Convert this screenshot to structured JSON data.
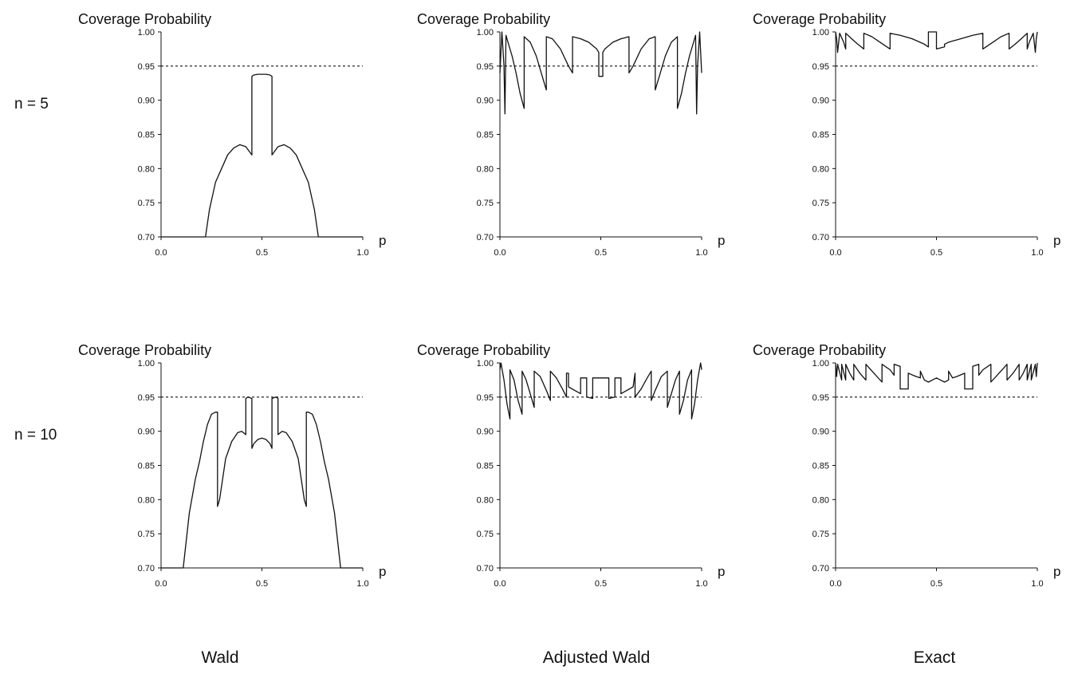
{
  "row_labels": [
    "n = 5",
    "n = 10"
  ],
  "column_labels": [
    "Wald",
    "Adjusted Wald",
    "Exact"
  ],
  "colors": {
    "line": "#111111",
    "reference": "#111111",
    "axis": "#111111"
  },
  "chart_data": [
    {
      "type": "line",
      "row": "n = 5",
      "column": "Wald",
      "ylabel": "Coverage Probability",
      "xlabel": "p",
      "xlim": [
        0.0,
        1.0
      ],
      "ylim": [
        0.7,
        1.0
      ],
      "xticks": [
        "0.0",
        "0.5",
        "1.0"
      ],
      "yticks": [
        "0.70",
        "0.75",
        "0.80",
        "0.85",
        "0.90",
        "0.95",
        "1.00"
      ],
      "reference_line": 0.95,
      "x": [
        0.0,
        0.22,
        0.24,
        0.27,
        0.3,
        0.33,
        0.36,
        0.39,
        0.42,
        0.45,
        0.45,
        0.46,
        0.48,
        0.5,
        0.52,
        0.54,
        0.55,
        0.55,
        0.58,
        0.61,
        0.64,
        0.67,
        0.7,
        0.73,
        0.76,
        0.78,
        1.0
      ],
      "y": [
        0.7,
        0.7,
        0.74,
        0.78,
        0.8,
        0.82,
        0.83,
        0.835,
        0.832,
        0.82,
        0.935,
        0.937,
        0.938,
        0.938,
        0.938,
        0.937,
        0.935,
        0.82,
        0.832,
        0.835,
        0.83,
        0.82,
        0.8,
        0.78,
        0.74,
        0.7,
        0.7
      ]
    },
    {
      "type": "line",
      "row": "n = 5",
      "column": "Adjusted Wald",
      "ylabel": "Coverage Probability",
      "xlabel": "p",
      "xlim": [
        0.0,
        1.0
      ],
      "ylim": [
        0.7,
        1.0
      ],
      "xticks": [
        "0.0",
        "0.5",
        "1.0"
      ],
      "yticks": [
        "0.70",
        "0.75",
        "0.80",
        "0.85",
        "0.90",
        "0.95",
        "1.00"
      ],
      "reference_line": 0.95,
      "x": [
        0.0,
        0.01,
        0.02,
        0.025,
        0.03,
        0.04,
        0.06,
        0.08,
        0.1,
        0.12,
        0.12,
        0.15,
        0.18,
        0.21,
        0.23,
        0.23,
        0.26,
        0.3,
        0.34,
        0.36,
        0.36,
        0.4,
        0.44,
        0.48,
        0.49,
        0.49,
        0.51,
        0.51,
        0.52,
        0.56,
        0.6,
        0.64,
        0.64,
        0.66,
        0.7,
        0.74,
        0.77,
        0.77,
        0.79,
        0.82,
        0.85,
        0.88,
        0.88,
        0.9,
        0.92,
        0.94,
        0.96,
        0.97,
        0.975,
        0.98,
        0.99,
        1.0
      ],
      "y": [
        0.94,
        1.0,
        0.95,
        0.88,
        0.995,
        0.985,
        0.965,
        0.94,
        0.91,
        0.888,
        0.993,
        0.985,
        0.965,
        0.935,
        0.915,
        0.993,
        0.99,
        0.975,
        0.95,
        0.94,
        0.993,
        0.99,
        0.985,
        0.975,
        0.97,
        0.935,
        0.935,
        0.97,
        0.975,
        0.985,
        0.99,
        0.993,
        0.94,
        0.95,
        0.975,
        0.99,
        0.993,
        0.915,
        0.935,
        0.965,
        0.985,
        0.993,
        0.888,
        0.91,
        0.94,
        0.965,
        0.985,
        0.995,
        0.88,
        0.95,
        1.0,
        0.94
      ]
    },
    {
      "type": "line",
      "row": "n = 5",
      "column": "Exact",
      "ylabel": "Coverage Probability",
      "xlabel": "p",
      "xlim": [
        0.0,
        1.0
      ],
      "ylim": [
        0.7,
        1.0
      ],
      "xticks": [
        "0.0",
        "0.5",
        "1.0"
      ],
      "yticks": [
        "0.70",
        "0.75",
        "0.80",
        "0.85",
        "0.90",
        "0.95",
        "1.00"
      ],
      "reference_line": 0.95,
      "x": [
        0.0,
        0.005,
        0.01,
        0.02,
        0.04,
        0.05,
        0.05,
        0.08,
        0.11,
        0.14,
        0.14,
        0.18,
        0.22,
        0.27,
        0.27,
        0.32,
        0.38,
        0.44,
        0.46,
        0.46,
        0.5,
        0.5,
        0.54,
        0.54,
        0.56,
        0.62,
        0.68,
        0.73,
        0.73,
        0.78,
        0.82,
        0.86,
        0.86,
        0.89,
        0.92,
        0.95,
        0.95,
        0.96,
        0.98,
        0.99,
        0.995,
        1.0
      ],
      "y": [
        1.0,
        0.99,
        0.97,
        0.998,
        0.985,
        0.975,
        0.998,
        0.99,
        0.982,
        0.975,
        0.998,
        0.993,
        0.985,
        0.975,
        0.998,
        0.995,
        0.99,
        0.982,
        0.978,
        1.0,
        1.0,
        0.975,
        0.978,
        0.982,
        0.985,
        0.99,
        0.995,
        0.998,
        0.975,
        0.985,
        0.993,
        0.998,
        0.975,
        0.982,
        0.99,
        0.998,
        0.975,
        0.985,
        0.998,
        0.97,
        0.99,
        1.0
      ]
    },
    {
      "type": "line",
      "row": "n = 10",
      "column": "Wald",
      "ylabel": "Coverage Probability",
      "xlabel": "p",
      "xlim": [
        0.0,
        1.0
      ],
      "ylim": [
        0.7,
        1.0
      ],
      "xticks": [
        "0.0",
        "0.5",
        "1.0"
      ],
      "yticks": [
        "0.70",
        "0.75",
        "0.80",
        "0.85",
        "0.90",
        "0.95",
        "1.00"
      ],
      "reference_line": 0.95,
      "x": [
        0.0,
        0.11,
        0.14,
        0.17,
        0.19,
        0.21,
        0.23,
        0.25,
        0.27,
        0.28,
        0.28,
        0.29,
        0.32,
        0.35,
        0.38,
        0.4,
        0.42,
        0.42,
        0.43,
        0.45,
        0.45,
        0.46,
        0.48,
        0.5,
        0.52,
        0.54,
        0.55,
        0.55,
        0.57,
        0.58,
        0.58,
        0.6,
        0.62,
        0.65,
        0.68,
        0.71,
        0.72,
        0.72,
        0.73,
        0.75,
        0.77,
        0.79,
        0.81,
        0.83,
        0.86,
        0.89,
        1.0
      ],
      "y": [
        0.7,
        0.7,
        0.78,
        0.83,
        0.855,
        0.885,
        0.91,
        0.925,
        0.928,
        0.928,
        0.79,
        0.8,
        0.86,
        0.885,
        0.898,
        0.9,
        0.895,
        0.948,
        0.95,
        0.948,
        0.875,
        0.882,
        0.888,
        0.89,
        0.888,
        0.882,
        0.875,
        0.948,
        0.95,
        0.948,
        0.895,
        0.9,
        0.898,
        0.885,
        0.86,
        0.8,
        0.79,
        0.928,
        0.928,
        0.925,
        0.91,
        0.885,
        0.855,
        0.83,
        0.78,
        0.7,
        0.7
      ]
    },
    {
      "type": "line",
      "row": "n = 10",
      "column": "Adjusted Wald",
      "ylabel": "Coverage Probability",
      "xlabel": "p",
      "xlim": [
        0.0,
        1.0
      ],
      "ylim": [
        0.7,
        1.0
      ],
      "xticks": [
        "0.0",
        "0.5",
        "1.0"
      ],
      "yticks": [
        "0.70",
        "0.75",
        "0.80",
        "0.85",
        "0.90",
        "0.95",
        "1.00"
      ],
      "reference_line": 0.95,
      "x": [
        0.0,
        0.005,
        0.02,
        0.035,
        0.05,
        0.05,
        0.07,
        0.09,
        0.11,
        0.11,
        0.13,
        0.15,
        0.17,
        0.17,
        0.2,
        0.23,
        0.25,
        0.25,
        0.28,
        0.31,
        0.33,
        0.33,
        0.34,
        0.34,
        0.37,
        0.4,
        0.4,
        0.43,
        0.43,
        0.46,
        0.46,
        0.49,
        0.5,
        0.51,
        0.53,
        0.54,
        0.54,
        0.57,
        0.57,
        0.6,
        0.6,
        0.63,
        0.66,
        0.67,
        0.67,
        0.7,
        0.73,
        0.75,
        0.75,
        0.77,
        0.8,
        0.83,
        0.83,
        0.85,
        0.87,
        0.89,
        0.89,
        0.91,
        0.93,
        0.95,
        0.95,
        0.965,
        0.98,
        0.995,
        1.0
      ],
      "y": [
        0.99,
        1.0,
        0.975,
        0.94,
        0.918,
        0.99,
        0.975,
        0.945,
        0.925,
        0.988,
        0.975,
        0.955,
        0.935,
        0.988,
        0.98,
        0.96,
        0.945,
        0.988,
        0.978,
        0.962,
        0.95,
        0.985,
        0.985,
        0.965,
        0.96,
        0.955,
        0.978,
        0.978,
        0.95,
        0.948,
        0.978,
        0.978,
        0.978,
        0.978,
        0.978,
        0.978,
        0.948,
        0.95,
        0.978,
        0.978,
        0.955,
        0.96,
        0.965,
        0.985,
        0.95,
        0.962,
        0.978,
        0.988,
        0.945,
        0.96,
        0.98,
        0.988,
        0.935,
        0.955,
        0.975,
        0.988,
        0.925,
        0.945,
        0.975,
        0.99,
        0.918,
        0.94,
        0.975,
        1.0,
        0.99
      ]
    },
    {
      "type": "line",
      "row": "n = 10",
      "column": "Exact",
      "ylabel": "Coverage Probability",
      "xlabel": "p",
      "xlim": [
        0.0,
        1.0
      ],
      "ylim": [
        0.7,
        1.0
      ],
      "xticks": [
        "0.0",
        "0.5",
        "1.0"
      ],
      "yticks": [
        "0.70",
        "0.75",
        "0.80",
        "0.85",
        "0.90",
        "0.95",
        "1.00"
      ],
      "reference_line": 0.95,
      "x": [
        0.0,
        0.005,
        0.01,
        0.03,
        0.03,
        0.05,
        0.05,
        0.07,
        0.09,
        0.09,
        0.12,
        0.15,
        0.15,
        0.19,
        0.23,
        0.23,
        0.27,
        0.29,
        0.29,
        0.32,
        0.32,
        0.36,
        0.36,
        0.4,
        0.42,
        0.42,
        0.44,
        0.46,
        0.48,
        0.5,
        0.52,
        0.54,
        0.56,
        0.56,
        0.58,
        0.6,
        0.64,
        0.64,
        0.68,
        0.68,
        0.71,
        0.71,
        0.73,
        0.77,
        0.77,
        0.81,
        0.85,
        0.85,
        0.88,
        0.91,
        0.91,
        0.93,
        0.95,
        0.95,
        0.97,
        0.97,
        0.99,
        0.995,
        1.0
      ],
      "y": [
        1.0,
        0.98,
        0.998,
        0.975,
        0.998,
        0.975,
        0.998,
        0.985,
        0.975,
        0.998,
        0.985,
        0.975,
        0.998,
        0.985,
        0.972,
        0.998,
        0.99,
        0.982,
        0.998,
        0.995,
        0.962,
        0.962,
        0.985,
        0.98,
        0.978,
        0.988,
        0.975,
        0.972,
        0.975,
        0.978,
        0.975,
        0.972,
        0.975,
        0.988,
        0.978,
        0.98,
        0.985,
        0.962,
        0.962,
        0.995,
        0.998,
        0.982,
        0.99,
        0.998,
        0.972,
        0.985,
        0.998,
        0.975,
        0.985,
        0.998,
        0.975,
        0.985,
        0.998,
        0.975,
        0.998,
        0.975,
        0.998,
        0.98,
        1.0
      ]
    }
  ]
}
